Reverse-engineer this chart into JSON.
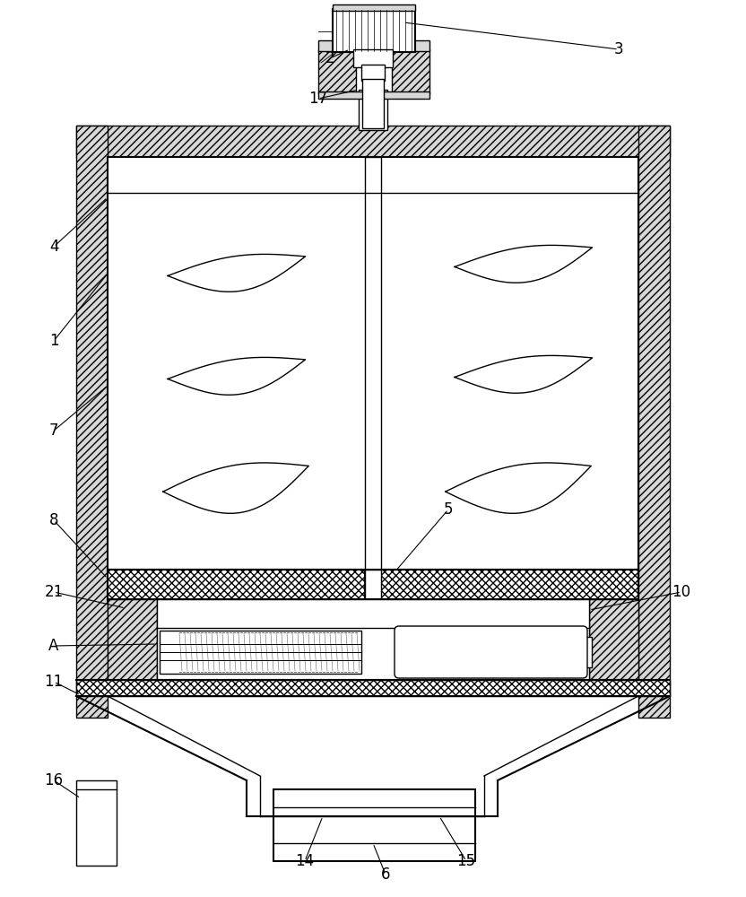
{
  "bg_color": "#ffffff",
  "line_color": "#000000",
  "fig_width": 8.32,
  "fig_height": 10.0,
  "dpi": 100
}
